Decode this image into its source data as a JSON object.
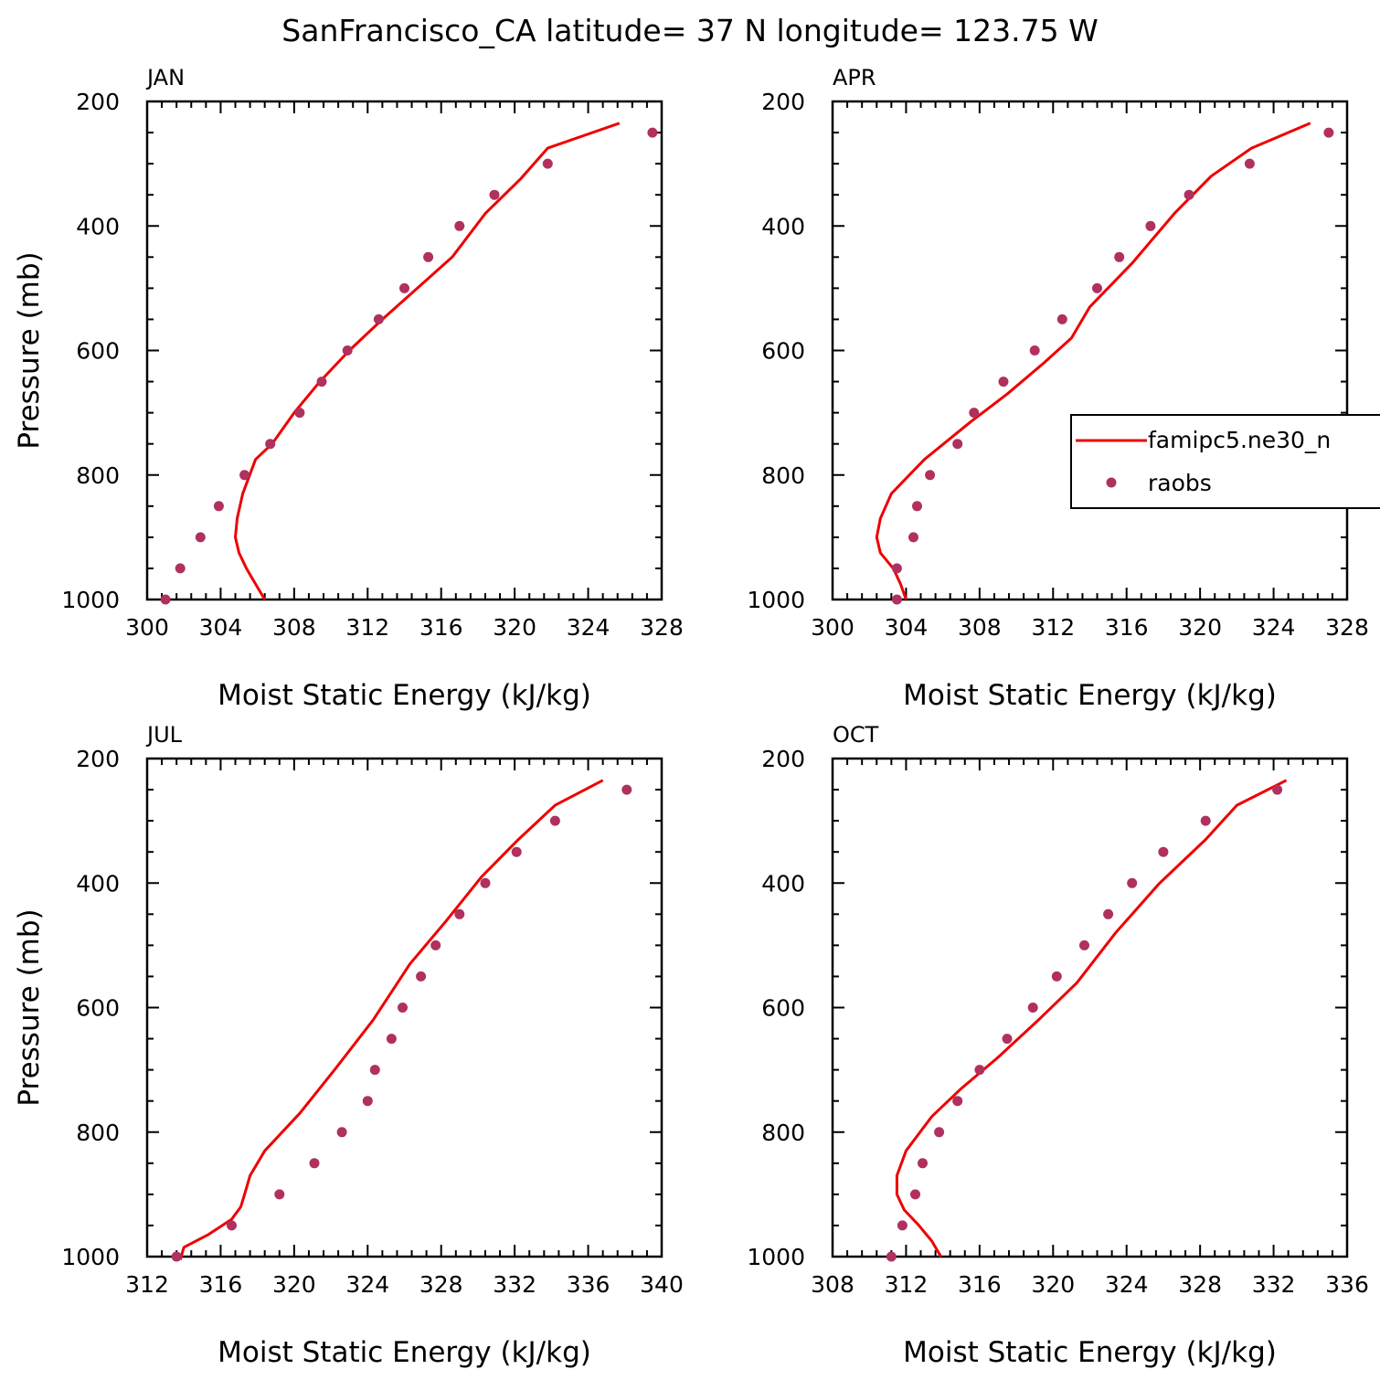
{
  "title": "SanFrancisco_CA  latitude= 37 N longitude= 123.75 W",
  "colors": {
    "model": "#ee0000",
    "obs": "#b03060",
    "axis": "#000000"
  },
  "legend": {
    "model_label": "famipc5.ne30_n",
    "obs_label": "raobs",
    "placement": "right of APR panel, clipped"
  },
  "chart_data": [
    {
      "type": "line",
      "panel": "JAN",
      "title": "JAN",
      "xlabel": "Moist Static Energy (kJ/kg)",
      "ylabel": "Pressure (mb)",
      "xlim": [
        300,
        328
      ],
      "ylim": [
        1000,
        200
      ],
      "y_axis_reversed": true,
      "xticks": [
        300,
        304,
        308,
        312,
        316,
        320,
        324,
        328
      ],
      "yticks": [
        200,
        400,
        600,
        800,
        1000
      ],
      "series": [
        {
          "name": "famipc5.ne30_n",
          "kind": "line",
          "x": [
            306.4,
            305.9,
            305.4,
            305.0,
            304.8,
            304.9,
            305.2,
            305.9,
            306.8,
            308.0,
            309.4,
            311.0,
            312.8,
            314.7,
            316.6,
            318.4,
            320.3,
            321.8,
            325.7
          ],
          "y": [
            1000,
            975,
            950,
            925,
            900,
            870,
            830,
            775,
            750,
            700,
            650,
            600,
            550,
            500,
            450,
            380,
            325,
            275,
            235
          ]
        },
        {
          "name": "raobs",
          "kind": "scatter",
          "x": [
            301.0,
            301.8,
            302.9,
            303.9,
            305.3,
            306.7,
            308.3,
            309.5,
            310.9,
            312.6,
            314.0,
            315.3,
            317.0,
            318.9,
            321.8,
            327.5
          ],
          "y": [
            1000,
            950,
            900,
            850,
            800,
            750,
            700,
            650,
            600,
            550,
            500,
            450,
            400,
            350,
            300,
            250
          ]
        }
      ]
    },
    {
      "type": "line",
      "panel": "APR",
      "title": "APR",
      "xlabel": "Moist Static Energy (kJ/kg)",
      "ylabel": "",
      "xlim": [
        300,
        328
      ],
      "ylim": [
        1000,
        200
      ],
      "y_axis_reversed": true,
      "xticks": [
        300,
        304,
        308,
        312,
        316,
        320,
        324,
        328
      ],
      "yticks": [
        200,
        400,
        600,
        800,
        1000
      ],
      "series": [
        {
          "name": "famipc5.ne30_n",
          "kind": "line",
          "x": [
            304.0,
            303.7,
            303.3,
            302.6,
            302.4,
            302.6,
            303.2,
            305.0,
            307.5,
            309.5,
            311.5,
            313.0,
            314.0,
            316.3,
            318.6,
            320.6,
            322.8,
            326.0
          ],
          "y": [
            1000,
            975,
            950,
            925,
            900,
            870,
            830,
            775,
            715,
            670,
            620,
            580,
            530,
            460,
            380,
            320,
            275,
            235
          ]
        },
        {
          "name": "raobs",
          "kind": "scatter",
          "x": [
            303.5,
            303.5,
            304.4,
            304.6,
            305.3,
            306.8,
            307.7,
            309.3,
            311.0,
            312.5,
            314.4,
            315.6,
            317.3,
            319.4,
            322.7,
            327.0
          ],
          "y": [
            1000,
            950,
            900,
            850,
            800,
            750,
            700,
            650,
            600,
            550,
            500,
            450,
            400,
            350,
            300,
            250
          ]
        }
      ]
    },
    {
      "type": "line",
      "panel": "JUL",
      "title": "JUL",
      "xlabel": "Moist Static Energy (kJ/kg)",
      "ylabel": "Pressure (mb)",
      "xlim": [
        312,
        340
      ],
      "ylim": [
        1000,
        200
      ],
      "y_axis_reversed": true,
      "xticks": [
        312,
        316,
        320,
        324,
        328,
        332,
        336,
        340
      ],
      "yticks": [
        200,
        400,
        600,
        800,
        1000
      ],
      "series": [
        {
          "name": "famipc5.ne30_n",
          "kind": "line",
          "x": [
            313.8,
            314.0,
            315.3,
            316.6,
            317.1,
            317.3,
            317.6,
            318.4,
            320.3,
            322.2,
            324.3,
            326.3,
            328.3,
            330.2,
            332.2,
            334.2,
            336.8
          ],
          "y": [
            1005,
            985,
            965,
            940,
            920,
            900,
            870,
            830,
            770,
            700,
            620,
            530,
            460,
            390,
            330,
            275,
            235
          ]
        },
        {
          "name": "raobs",
          "kind": "scatter",
          "x": [
            313.6,
            316.6,
            319.2,
            321.1,
            322.6,
            324.0,
            324.4,
            325.3,
            325.9,
            326.9,
            327.7,
            329.0,
            330.4,
            332.1,
            334.2,
            338.1
          ],
          "y": [
            1000,
            950,
            900,
            850,
            800,
            750,
            700,
            650,
            600,
            550,
            500,
            450,
            400,
            350,
            300,
            250
          ]
        }
      ]
    },
    {
      "type": "line",
      "panel": "OCT",
      "title": "OCT",
      "xlabel": "Moist Static Energy (kJ/kg)",
      "ylabel": "",
      "xlim": [
        308,
        336
      ],
      "ylim": [
        1000,
        200
      ],
      "y_axis_reversed": true,
      "xticks": [
        308,
        312,
        316,
        320,
        324,
        328,
        332,
        336
      ],
      "yticks": [
        200,
        400,
        600,
        800,
        1000
      ],
      "series": [
        {
          "name": "famipc5.ne30_n",
          "kind": "line",
          "x": [
            313.9,
            313.4,
            312.7,
            311.9,
            311.5,
            311.5,
            312.0,
            313.4,
            315.0,
            317.0,
            319.2,
            321.3,
            323.4,
            325.8,
            328.3,
            330.0,
            332.7
          ],
          "y": [
            1000,
            975,
            950,
            925,
            900,
            870,
            830,
            775,
            730,
            680,
            620,
            560,
            480,
            400,
            330,
            275,
            235
          ]
        },
        {
          "name": "raobs",
          "kind": "scatter",
          "x": [
            311.2,
            311.8,
            312.5,
            312.9,
            313.8,
            314.8,
            316.0,
            317.5,
            318.9,
            320.2,
            321.7,
            323.0,
            324.3,
            326.0,
            328.3,
            332.2
          ],
          "y": [
            1000,
            950,
            900,
            850,
            800,
            750,
            700,
            650,
            600,
            550,
            500,
            450,
            400,
            350,
            300,
            250
          ]
        }
      ]
    }
  ]
}
